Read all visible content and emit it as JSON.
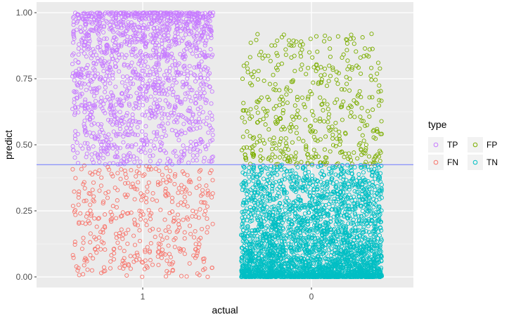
{
  "chart_data": {
    "type": "scatter",
    "xlabel": "actual",
    "ylabel": "predict",
    "x_categories": [
      "1",
      "0"
    ],
    "ylim": [
      -0.04,
      1.04
    ],
    "y_ticks": [
      0.0,
      0.25,
      0.5,
      0.75,
      1.0
    ],
    "y_tick_labels": [
      "0.00",
      "0.25",
      "0.50",
      "0.75",
      "1.00"
    ],
    "threshold": 0.425,
    "threshold_color": "#6e7bff",
    "grid": true,
    "panel_background": "#ebebeb",
    "jitter_width": 0.4,
    "legend": {
      "title": "type",
      "placement": "right",
      "entries": [
        {
          "label": "TP",
          "color": "#c77cff"
        },
        {
          "label": "FP",
          "color": "#7cae00"
        },
        {
          "label": "FN",
          "color": "#f8766d"
        },
        {
          "label": "TN",
          "color": "#00bfc4"
        }
      ]
    },
    "series": [
      {
        "name": "TP",
        "actual": "1",
        "color": "#c77cff",
        "y_range": [
          0.425,
          1.0
        ],
        "approx_count": 1500,
        "distribution": "dense near 1.00"
      },
      {
        "name": "FN",
        "actual": "1",
        "color": "#f8766d",
        "y_range": [
          0.0,
          0.425
        ],
        "approx_count": 400,
        "distribution": "roughly uniform"
      },
      {
        "name": "FP",
        "actual": "0",
        "color": "#7cae00",
        "y_range": [
          0.425,
          0.92
        ],
        "approx_count": 450,
        "distribution": "denser near 0.50"
      },
      {
        "name": "TN",
        "actual": "0",
        "color": "#00bfc4",
        "y_range": [
          0.0,
          0.425
        ],
        "approx_count": 3000,
        "distribution": "very dense near 0.00"
      }
    ]
  }
}
